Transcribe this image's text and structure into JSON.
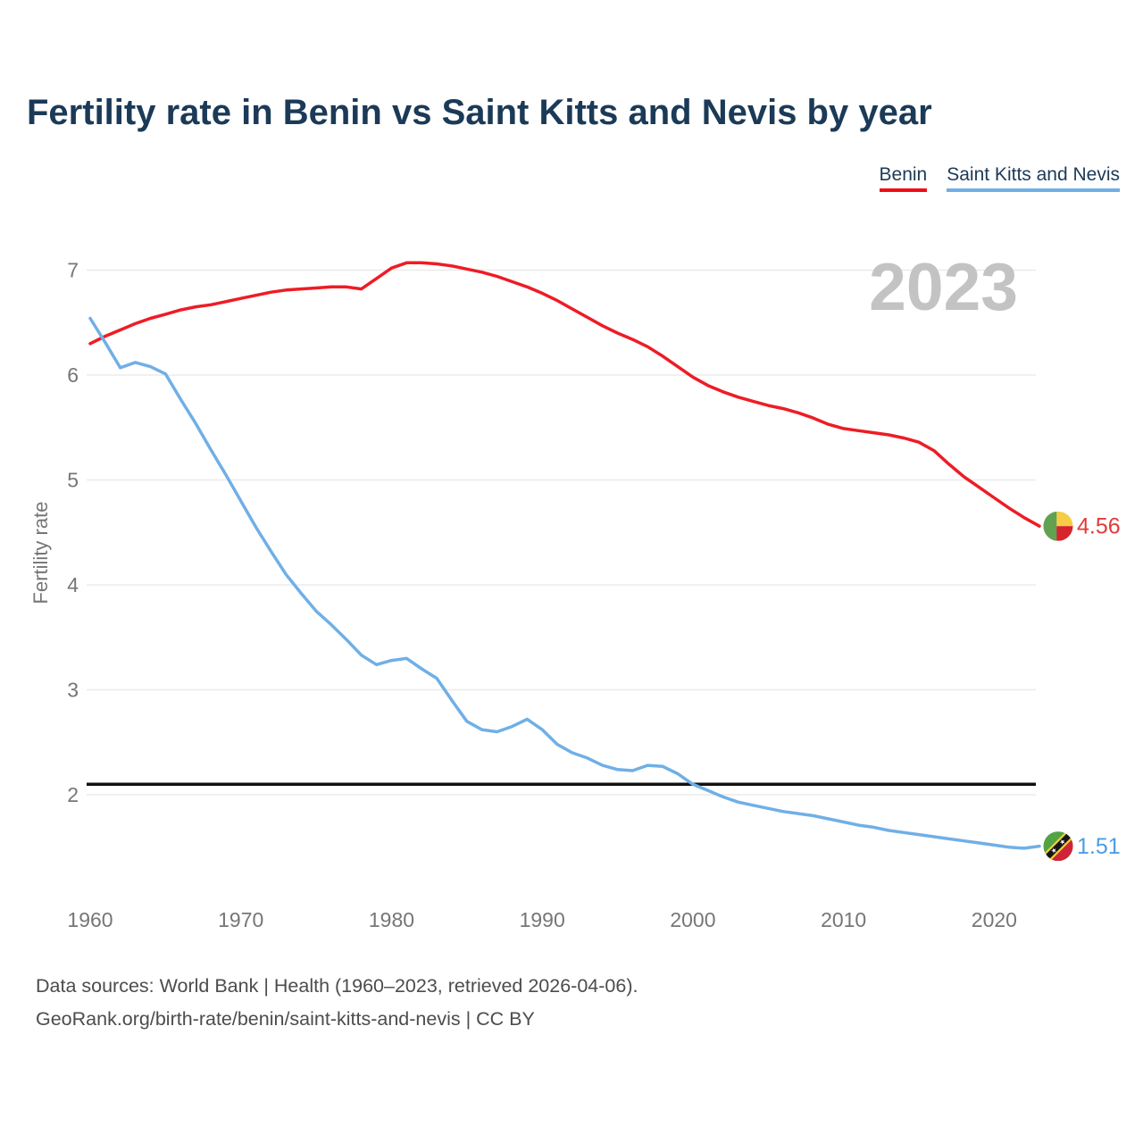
{
  "title": "Fertility rate in Benin vs Saint Kitts and Nevis by year",
  "watermark": "2023",
  "legend": [
    {
      "label": "Benin",
      "color": "#f20d16"
    },
    {
      "label": "Saint Kitts and Nevis",
      "color": "#70afe6"
    }
  ],
  "chart_data": {
    "type": "line",
    "title": "Fertility rate in Benin vs Saint Kitts and Nevis by year",
    "xlabel": "",
    "ylabel": "Fertility rate",
    "x_ticks": [
      1960,
      1970,
      1980,
      1990,
      2000,
      2010,
      2020
    ],
    "y_ticks": [
      2,
      3,
      4,
      5,
      6,
      7
    ],
    "ylim": [
      1.35,
      7.3
    ],
    "grid": true,
    "legend_position": "top-right",
    "reference_line": {
      "value": 2.1,
      "color": "#111111"
    },
    "x": [
      1960,
      1961,
      1962,
      1963,
      1964,
      1965,
      1966,
      1967,
      1968,
      1969,
      1970,
      1971,
      1972,
      1973,
      1974,
      1975,
      1976,
      1977,
      1978,
      1979,
      1980,
      1981,
      1982,
      1983,
      1984,
      1985,
      1986,
      1987,
      1988,
      1989,
      1990,
      1991,
      1992,
      1993,
      1994,
      1995,
      1996,
      1997,
      1998,
      1999,
      2000,
      2001,
      2002,
      2003,
      2004,
      2005,
      2006,
      2007,
      2008,
      2009,
      2010,
      2011,
      2012,
      2013,
      2014,
      2015,
      2016,
      2017,
      2018,
      2019,
      2020,
      2021,
      2022,
      2023
    ],
    "series": [
      {
        "name": "Benin",
        "color": "#ee1c25",
        "label_color": "#e23a3a",
        "end_label": "4.56",
        "flag_icon": "benin-flag-icon",
        "values": [
          6.3,
          6.37,
          6.43,
          6.49,
          6.54,
          6.58,
          6.62,
          6.65,
          6.67,
          6.7,
          6.73,
          6.76,
          6.79,
          6.81,
          6.82,
          6.83,
          6.84,
          6.84,
          6.82,
          6.92,
          7.02,
          7.07,
          7.07,
          7.06,
          7.04,
          7.01,
          6.98,
          6.94,
          6.89,
          6.84,
          6.78,
          6.71,
          6.63,
          6.55,
          6.47,
          6.4,
          6.34,
          6.27,
          6.18,
          6.08,
          5.98,
          5.9,
          5.84,
          5.79,
          5.75,
          5.71,
          5.68,
          5.64,
          5.59,
          5.53,
          5.49,
          5.47,
          5.45,
          5.43,
          5.4,
          5.36,
          5.28,
          5.15,
          5.03,
          4.93,
          4.83,
          4.73,
          4.64,
          4.56
        ]
      },
      {
        "name": "Saint Kitts and Nevis",
        "color": "#70afe6",
        "label_color": "#4d9ce4",
        "end_label": "1.51",
        "flag_icon": "saint-kitts-and-nevis-flag-icon",
        "values": [
          6.54,
          6.31,
          6.07,
          6.12,
          6.08,
          6.01,
          5.77,
          5.54,
          5.29,
          5.05,
          4.8,
          4.55,
          4.32,
          4.1,
          3.92,
          3.75,
          3.62,
          3.48,
          3.33,
          3.24,
          3.28,
          3.3,
          3.2,
          3.11,
          2.9,
          2.7,
          2.62,
          2.6,
          2.65,
          2.72,
          2.62,
          2.48,
          2.4,
          2.35,
          2.28,
          2.24,
          2.23,
          2.28,
          2.27,
          2.2,
          2.1,
          2.04,
          1.98,
          1.93,
          1.9,
          1.87,
          1.84,
          1.82,
          1.8,
          1.77,
          1.74,
          1.71,
          1.69,
          1.66,
          1.64,
          1.62,
          1.6,
          1.58,
          1.56,
          1.54,
          1.52,
          1.5,
          1.49,
          1.51
        ]
      }
    ]
  },
  "footer": {
    "line1": "Data sources: World Bank | Health (1960–2023, retrieved 2026-04-06).",
    "line2": "GeoRank.org/birth-rate/benin/saint-kitts-and-nevis | CC BY"
  }
}
